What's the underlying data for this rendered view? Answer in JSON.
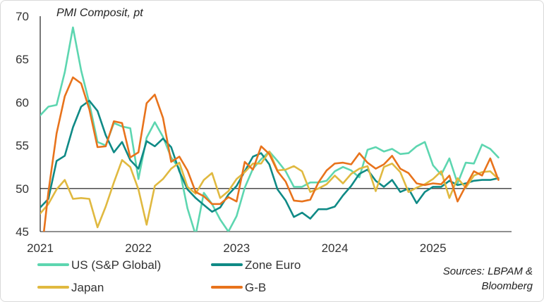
{
  "chart_data": {
    "type": "line",
    "ylabel": "PMI Composit, pt",
    "source": [
      "Sources: LBPAM &",
      "Bloomberg"
    ],
    "ylim": [
      45,
      70
    ],
    "yticks": [
      45,
      50,
      55,
      60,
      65,
      70
    ],
    "xlim": [
      2021.0,
      2025.8
    ],
    "xticks": [
      {
        "value": 2021,
        "label": "2021"
      },
      {
        "value": 2022,
        "label": "2022"
      },
      {
        "value": 2023,
        "label": "2023"
      },
      {
        "value": 2024,
        "label": "2024"
      },
      {
        "value": 2025,
        "label": "2025"
      }
    ],
    "reference_line": 50,
    "x_start": 2021.0,
    "x_step": 0.0833333,
    "series": [
      {
        "name": "US (S&P Global)",
        "color": "#5dd6b0",
        "values": [
          58.5,
          59.5,
          59.7,
          63.5,
          68.7,
          63.7,
          59.9,
          55.4,
          55.0,
          57.6,
          57.2,
          57.0,
          51.1,
          55.9,
          57.7,
          56.0,
          53.6,
          52.3,
          47.7,
          44.6,
          49.5,
          48.2,
          46.4,
          45.0,
          46.8,
          50.1,
          52.3,
          53.4,
          54.3,
          53.2,
          52.0,
          50.2,
          50.2,
          50.7,
          50.7,
          50.9,
          52.0,
          52.5,
          52.1,
          51.3,
          54.5,
          54.8,
          54.3,
          54.6,
          54.0,
          54.1,
          54.9,
          55.4,
          52.7,
          51.6,
          53.5,
          50.6,
          53.0,
          52.9,
          55.1,
          54.6,
          53.6
        ]
      },
      {
        "name": "Zone Euro",
        "color": "#0f8a86",
        "values": [
          47.8,
          48.8,
          53.2,
          53.8,
          57.1,
          59.5,
          60.2,
          59.0,
          56.2,
          54.2,
          55.4,
          53.3,
          52.3,
          55.5,
          54.9,
          55.8,
          54.8,
          52.0,
          49.9,
          48.9,
          48.1,
          47.3,
          47.8,
          49.3,
          50.3,
          52.0,
          53.7,
          54.1,
          52.8,
          49.9,
          48.6,
          46.7,
          47.2,
          46.5,
          47.6,
          47.6,
          47.9,
          49.2,
          50.3,
          51.7,
          52.2,
          50.9,
          50.2,
          51.0,
          49.6,
          50.0,
          48.3,
          49.6,
          50.2,
          50.2,
          50.9,
          50.4,
          50.6,
          50.9,
          51.0,
          51.0,
          51.2
        ]
      },
      {
        "name": "Japan",
        "color": "#e0b940",
        "values": [
          47.1,
          48.2,
          49.9,
          51.0,
          48.8,
          48.9,
          48.8,
          45.5,
          47.9,
          50.7,
          53.3,
          52.5,
          49.9,
          45.8,
          50.3,
          51.1,
          52.3,
          53.0,
          50.2,
          49.4,
          51.0,
          51.8,
          48.9,
          49.7,
          51.1,
          51.9,
          52.9,
          52.9,
          54.3,
          52.1,
          52.2,
          52.6,
          52.0,
          49.6,
          50.0,
          50.5,
          51.5,
          50.6,
          51.7,
          52.3,
          52.6,
          49.7,
          52.5,
          52.9,
          51.9,
          49.6,
          50.1,
          50.5,
          51.1,
          52.0,
          48.9,
          51.2,
          50.1,
          51.5,
          51.9,
          52.0,
          51.1
        ]
      },
      {
        "name": "G-B",
        "color": "#e8731c",
        "values": [
          41.2,
          49.6,
          56.4,
          60.7,
          62.9,
          62.2,
          59.2,
          54.8,
          54.9,
          57.8,
          57.6,
          53.6,
          54.2,
          59.9,
          60.9,
          58.2,
          53.1,
          53.7,
          52.1,
          49.6,
          49.1,
          48.2,
          48.2,
          49.0,
          48.5,
          53.1,
          52.2,
          54.9,
          54.0,
          52.0,
          50.8,
          48.6,
          48.5,
          48.7,
          50.7,
          52.1,
          52.9,
          53.0,
          52.8,
          54.1,
          53.0,
          52.3,
          52.8,
          53.8,
          52.3,
          51.8,
          50.6,
          50.4,
          50.6,
          50.5,
          51.5,
          48.5,
          50.3,
          52.0,
          51.5,
          53.5,
          51.0
        ]
      }
    ]
  }
}
